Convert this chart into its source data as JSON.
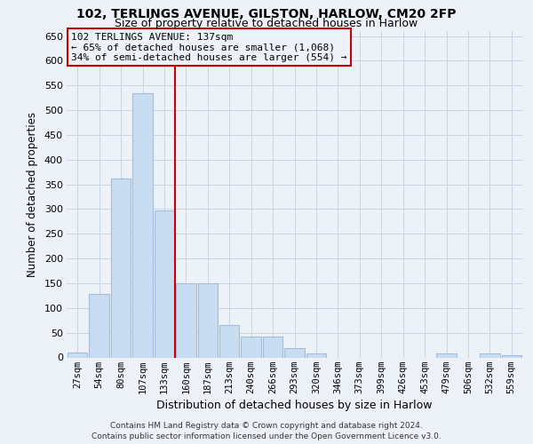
{
  "title_line1": "102, TERLINGS AVENUE, GILSTON, HARLOW, CM20 2FP",
  "title_line2": "Size of property relative to detached houses in Harlow",
  "xlabel": "Distribution of detached houses by size in Harlow",
  "ylabel": "Number of detached properties",
  "footer": "Contains HM Land Registry data © Crown copyright and database right 2024.\nContains public sector information licensed under the Open Government Licence v3.0.",
  "annotation_title": "102 TERLINGS AVENUE: 137sqm",
  "annotation_line1": "← 65% of detached houses are smaller (1,068)",
  "annotation_line2": "34% of semi-detached houses are larger (554) →",
  "bar_color": "#c9ddf2",
  "bar_edge_color": "#a4bcd8",
  "marker_color": "#cc0000",
  "background_color": "#edf2f9",
  "grid_color": "#c8d4e4",
  "categories": [
    "27sqm",
    "54sqm",
    "80sqm",
    "107sqm",
    "133sqm",
    "160sqm",
    "187sqm",
    "213sqm",
    "240sqm",
    "266sqm",
    "293sqm",
    "320sqm",
    "346sqm",
    "373sqm",
    "399sqm",
    "426sqm",
    "453sqm",
    "479sqm",
    "506sqm",
    "532sqm",
    "559sqm"
  ],
  "values": [
    10,
    128,
    362,
    535,
    298,
    150,
    150,
    65,
    42,
    42,
    18,
    8,
    0,
    0,
    0,
    0,
    0,
    8,
    0,
    8,
    5
  ],
  "property_line_x": 4.5,
  "ylim_max": 660,
  "ytick_step": 50,
  "title_fontsize": 10,
  "subtitle_fontsize": 9,
  "ylabel_fontsize": 8.5,
  "xlabel_fontsize": 9,
  "tick_fontsize": 8,
  "xtick_fontsize": 7.5,
  "ann_fontsize": 8,
  "footer_fontsize": 6.5
}
